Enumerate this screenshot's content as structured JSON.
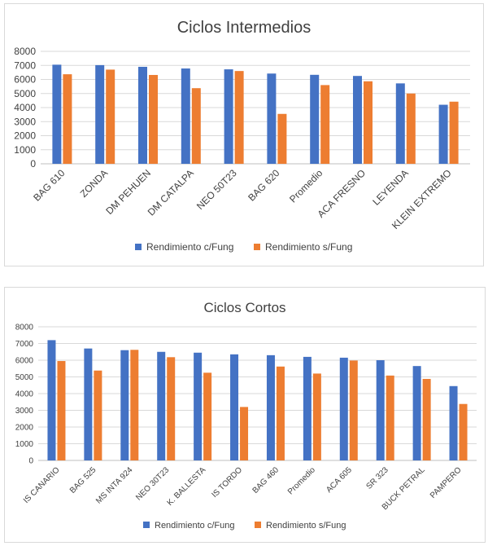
{
  "colors": {
    "with_fungicide": "#4472c4",
    "without_fungicide": "#ed7d31"
  },
  "chart_data": [
    {
      "type": "bar",
      "title": "Ciclos Intermedios",
      "categories": [
        "BAG 610",
        "ZONDA",
        "DM PEHUEN",
        "DM CATALPA",
        "NEO 50T23",
        "BAG 620",
        "Promedio",
        "ACA FRESNO",
        "LEYENDA",
        "KLEIN EXTREMO"
      ],
      "series": [
        {
          "name": "Rendimiento c/Fung",
          "values": [
            7050,
            7020,
            6900,
            6780,
            6720,
            6420,
            6330,
            6250,
            5720,
            4200
          ]
        },
        {
          "name": "Rendimiento s/Fung",
          "values": [
            6370,
            6700,
            6320,
            5380,
            6600,
            3550,
            5600,
            5870,
            5000,
            4420
          ]
        }
      ],
      "yticks": [
        "0",
        "1000",
        "2000",
        "3000",
        "4000",
        "5000",
        "6000",
        "7000",
        "8000"
      ],
      "ylim": [
        0,
        8000
      ],
      "grid": true,
      "legend": "bottom"
    },
    {
      "type": "bar",
      "title": "Ciclos Cortos",
      "categories": [
        "IS CANARIO",
        "BAG 525",
        "MS INTA 924",
        "NEO 30T23",
        "K. BALLESTA",
        "IS TORDO",
        "BAG 460",
        "Promedio",
        "ACA 605",
        "SR 323",
        "BUCK PETRAL",
        "PAMPERO"
      ],
      "series": [
        {
          "name": "Rendimiento c/Fung",
          "values": [
            7200,
            6700,
            6600,
            6500,
            6450,
            6350,
            6300,
            6200,
            6150,
            6000,
            5650,
            4450
          ]
        },
        {
          "name": "Rendimiento s/Fung",
          "values": [
            5950,
            5380,
            6620,
            6180,
            5250,
            3200,
            5620,
            5200,
            5980,
            5080,
            4880,
            3380
          ]
        }
      ],
      "yticks": [
        "0",
        "1000",
        "2000",
        "3000",
        "4000",
        "5000",
        "6000",
        "7000",
        "8000"
      ],
      "ylim": [
        0,
        8000
      ],
      "grid": true,
      "legend": "bottom"
    }
  ]
}
